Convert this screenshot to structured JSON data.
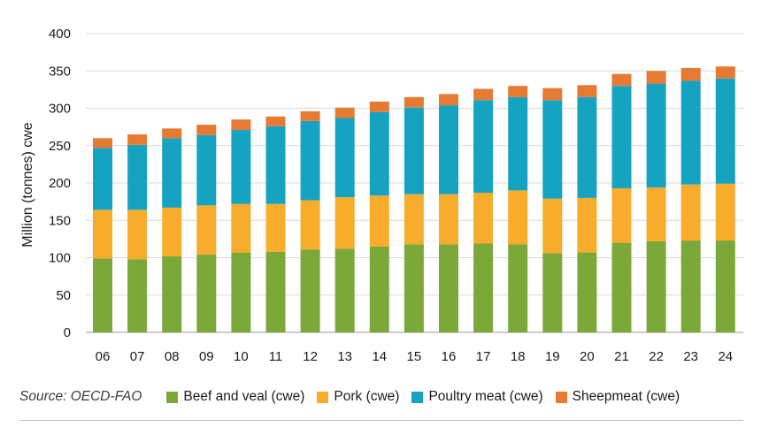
{
  "chart_data": {
    "type": "bar",
    "stacked": true,
    "title": "",
    "xlabel": "",
    "ylabel": "Million (tonnes) cwe",
    "ylim": [
      0,
      400
    ],
    "yticks": [
      0,
      50,
      100,
      150,
      200,
      250,
      300,
      350,
      400
    ],
    "grid": true,
    "legend_position": "bottom",
    "categories": [
      "06",
      "07",
      "08",
      "09",
      "10",
      "11",
      "12",
      "13",
      "14",
      "15",
      "16",
      "17",
      "18",
      "19",
      "20",
      "21",
      "22",
      "23",
      "24"
    ],
    "series": [
      {
        "name": "Beef and veal (cwe)",
        "color": "#7ca83a",
        "values": [
          99,
          98,
          102,
          104,
          107,
          108,
          111,
          112,
          115,
          118,
          118,
          119,
          118,
          106,
          107,
          120,
          122,
          123,
          123
        ]
      },
      {
        "name": "Pork (cwe)",
        "color": "#f8ac2c",
        "values": [
          65,
          66,
          65,
          66,
          65,
          64,
          66,
          69,
          68,
          67,
          67,
          68,
          72,
          73,
          73,
          73,
          72,
          75,
          76
        ]
      },
      {
        "name": "Poultry meat (cwe)",
        "color": "#16a3c2",
        "values": [
          83,
          87,
          93,
          94,
          99,
          104,
          106,
          106,
          112,
          116,
          119,
          124,
          125,
          132,
          135,
          137,
          139,
          139,
          141
        ]
      },
      {
        "name": "Sheepmeat (cwe)",
        "color": "#e67a33",
        "values": [
          13,
          14,
          13,
          14,
          14,
          13,
          13,
          14,
          14,
          14,
          15,
          15,
          15,
          16,
          16,
          16,
          17,
          17,
          16
        ]
      }
    ]
  },
  "footer": {
    "source": "Source: OECD-FAO"
  }
}
